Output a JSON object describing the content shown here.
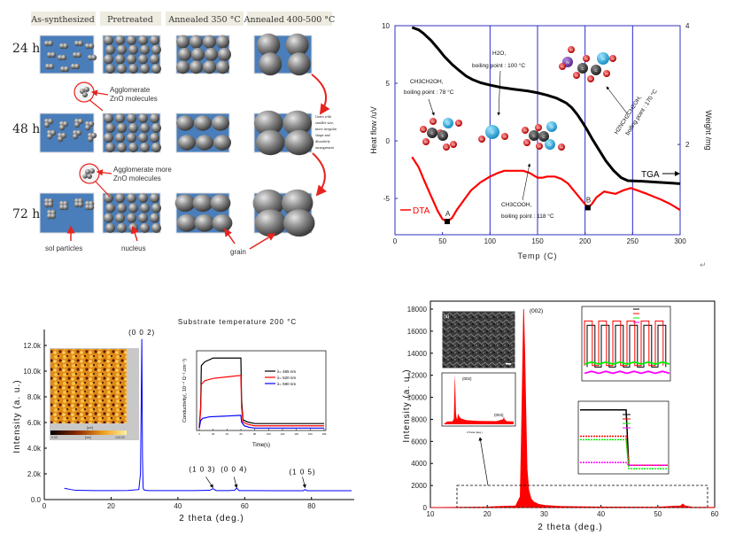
{
  "diagram": {
    "columns": [
      "As-synthesized",
      "Pretreated",
      "Annealed 350 °C",
      "Annealed 400-500 °C"
    ],
    "rows": [
      "24 h",
      "48 h",
      "72 h"
    ],
    "callouts": [
      {
        "line1": "Agglomerate",
        "line2": "ZnO molecules"
      },
      {
        "line1": "Agglomerate more",
        "line2": "ZnO molecules"
      }
    ],
    "labels": {
      "sol": "sol particles",
      "nucleus": "nucleus",
      "grain": "grain"
    },
    "side_note": [
      "Grain with",
      "smaller size,",
      "more irregular",
      "shape and",
      "disorderly",
      "arrangement"
    ],
    "colors": {
      "substrate": "#4a7ebb",
      "arrow": "#e8231e",
      "header_bg": "#eeebe0"
    }
  },
  "chart_data": [
    {
      "type": "line",
      "xlabel": "Temp (C)",
      "ylabel": "Heat flow /uV",
      "y2label": "Weight /mg",
      "xlim": [
        0,
        300
      ],
      "ylim": [
        -8.15,
        10
      ],
      "y2lim": [
        0.48,
        4
      ],
      "xticks": [
        "0",
        "50",
        "100",
        "150",
        "200",
        "250",
        "300"
      ],
      "yticks": [
        "-5",
        "0",
        "5",
        "10"
      ],
      "y2ticks": [
        "2",
        "4"
      ],
      "vlines": [
        100,
        150,
        200,
        250
      ],
      "series": [
        {
          "name": "DTA",
          "axis": "left",
          "color": "#ff0000",
          "x": [
            18,
            25,
            30,
            38,
            45,
            50,
            55,
            60,
            65,
            72,
            80,
            90,
            100,
            108,
            115,
            125,
            135,
            142,
            150,
            155,
            160,
            168,
            175,
            182,
            190,
            197,
            203,
            207,
            212,
            220,
            226,
            232,
            240,
            248,
            255,
            265,
            280,
            290,
            300
          ],
          "y": [
            -1.4,
            -2.3,
            -3.3,
            -4.8,
            -6.1,
            -6.8,
            -7.0,
            -6.7,
            -6.0,
            -5.2,
            -4.3,
            -3.6,
            -3.1,
            -2.8,
            -2.6,
            -2.6,
            -2.6,
            -2.8,
            -3.2,
            -3.2,
            -3.1,
            -3.1,
            -3.3,
            -3.7,
            -4.5,
            -5.2,
            -5.8,
            -5.5,
            -4.9,
            -4.4,
            -4.5,
            -4.6,
            -4.3,
            -4.1,
            -4.3,
            -4.6,
            -5.1,
            -5.5,
            -6.0
          ]
        },
        {
          "name": "TGA",
          "axis": "right",
          "color": "#000000",
          "x": [
            18,
            25,
            30,
            38,
            45,
            52,
            60,
            68,
            75,
            82,
            90,
            100,
            112,
            125,
            140,
            150,
            160,
            170,
            180,
            186,
            192,
            197,
            202,
            208,
            215,
            222,
            230,
            238,
            245,
            260,
            280,
            300
          ],
          "y": [
            3.97,
            3.93,
            3.87,
            3.75,
            3.62,
            3.48,
            3.35,
            3.24,
            3.15,
            3.09,
            3.04,
            3.0,
            2.96,
            2.93,
            2.9,
            2.87,
            2.83,
            2.78,
            2.7,
            2.62,
            2.5,
            2.38,
            2.25,
            2.08,
            1.9,
            1.72,
            1.56,
            1.44,
            1.39,
            1.38,
            1.36,
            1.34
          ]
        }
      ],
      "points": [
        {
          "label": "A",
          "x": 55,
          "y": -7.0
        },
        {
          "label": "B",
          "x": 203,
          "y": -5.8
        }
      ],
      "legend": {
        "dta": "DTA",
        "tga": "TGA"
      },
      "annotations": [
        {
          "formula": "CH3CH2OH,",
          "text": "boiling point : 78 °C"
        },
        {
          "formula": "H2O,",
          "text": "boiling point : 100 °C"
        },
        {
          "formula": "CH3COOH,",
          "text": "boiling point : 118 °C"
        },
        {
          "formula": "H2NCH2CH2OH,",
          "text": "boiling point : 170 °C"
        }
      ],
      "atom_labels": {
        "carbon": "C",
        "oxygen": "O",
        "hydrogen": "H",
        "nitrogen": "N"
      }
    },
    {
      "type": "line",
      "title": "Substrate temperature 200 °C",
      "xlabel": "2 theta (deg.)",
      "ylabel": "Intensity (a. u.)",
      "xlim": [
        0,
        92
      ],
      "ylim": [
        0,
        13200
      ],
      "xticks": [
        "0",
        "20",
        "40",
        "60",
        "80"
      ],
      "yticks": [
        "0.0",
        "2.0k",
        "4.0k",
        "6.0k",
        "8.0k",
        "10.0k",
        "12.0k"
      ],
      "series": [
        {
          "color": "#0000ff",
          "x": [
            6,
            8,
            9.5,
            15,
            20,
            25,
            28.3,
            28.8,
            29.0,
            29.2,
            29.4,
            29.6,
            29.8,
            30.2,
            31,
            35,
            40,
            45,
            49.5,
            50.5,
            51.5,
            55,
            57,
            57.6,
            58.3,
            62,
            70,
            77.5,
            78.1,
            78.7,
            85,
            92
          ],
          "y": [
            880,
            780,
            720,
            700,
            700,
            710,
            780,
            2000,
            6900,
            12500,
            3300,
            900,
            760,
            730,
            700,
            700,
            700,
            700,
            720,
            850,
            700,
            700,
            720,
            900,
            700,
            700,
            690,
            690,
            780,
            690,
            690,
            690
          ]
        }
      ],
      "peak_labels": [
        {
          "label": "(0 0 2)",
          "x": 29.2
        },
        {
          "label": "(1 0 3)",
          "x": 50.5
        },
        {
          "label": "(0 0 4)",
          "x": 57.6
        },
        {
          "label": "(1 0 5)",
          "x": 78.1
        }
      ],
      "afm_inset": {
        "scale_min": "0.00",
        "scale_unit": "[nm]",
        "scale_max": "143.00",
        "axis_unit": "[µm]"
      },
      "inset": {
        "type": "line",
        "xlabel": "Time(s)",
        "ylabel": "Conductivity(, 10⁻⁴ Ω⁻¹.cm⁻¹)",
        "xlim": [
          0,
          180
        ],
        "xticks": [
          "0",
          "20",
          "40",
          "60",
          "80",
          "100",
          "120",
          "140",
          "160",
          "180"
        ],
        "ylim": [
          0,
          1
        ],
        "series": [
          {
            "name": "λ= 465 nm",
            "color": "#000000",
            "x": [
              0,
              2,
              3,
              8,
              20,
              60,
              61,
              63,
              70,
              80,
              180
            ],
            "y": [
              0.02,
              0.3,
              0.85,
              0.9,
              0.95,
              0.95,
              0.4,
              0.13,
              0.1,
              0.08,
              0.08
            ]
          },
          {
            "name": "λ= 520 nm",
            "color": "#ff0000",
            "x": [
              0,
              2,
              3,
              8,
              20,
              60,
              61,
              63,
              70,
              80,
              180
            ],
            "y": [
              0.02,
              0.25,
              0.6,
              0.65,
              0.68,
              0.72,
              0.3,
              0.1,
              0.07,
              0.05,
              0.05
            ]
          },
          {
            "name": "λ= 590 nm",
            "color": "#0000ff",
            "x": [
              0,
              2,
              5,
              15,
              40,
              60,
              61,
              65,
              72,
              80,
              180
            ],
            "y": [
              0.02,
              0.12,
              0.15,
              0.17,
              0.18,
              0.19,
              0.1,
              0.05,
              0.03,
              0.02,
              0.02
            ]
          }
        ]
      }
    },
    {
      "type": "bar",
      "xlabel": "2 theta (deg.)",
      "ylabel": "Intensity (a. u.)",
      "xlim": [
        10,
        60
      ],
      "ylim": [
        0,
        18500
      ],
      "xticks": [
        "10",
        "20",
        "30",
        "40",
        "50",
        "60"
      ],
      "yticks": [
        "0",
        "2000",
        "4000",
        "6000",
        "8000",
        "10000",
        "12000",
        "14000",
        "16000",
        "18000"
      ],
      "series": [
        {
          "color": "#ff0000",
          "x": [
            10,
            20,
            22,
            25,
            25.8,
            26.0,
            26.2,
            26.4,
            26.6,
            26.8,
            27.0,
            27.3,
            27.7,
            28.2,
            29,
            30,
            33,
            40,
            50,
            54.0,
            54.4,
            54.8,
            56,
            60
          ],
          "y": [
            0,
            50,
            100,
            150,
            1000,
            6000,
            12000,
            18000,
            14000,
            8500,
            3500,
            1600,
            800,
            500,
            300,
            200,
            100,
            50,
            40,
            150,
            320,
            150,
            40,
            20
          ]
        }
      ],
      "peak_labels": [
        {
          "label": "(002)",
          "x": 26.4
        }
      ],
      "insets": {
        "sem_label": "(a)",
        "xrd": {
          "peak1": "(002)",
          "peak2": "(004)",
          "xlabel": "2 theta (deg.)"
        },
        "cycles": {
          "series_colors": [
            "#000000",
            "#ff0000",
            "#00ee00",
            "#ff00ff"
          ]
        },
        "step": {
          "series_colors": [
            "#000000",
            "#ff0000",
            "#00ee00",
            "#ff00ff"
          ]
        }
      }
    }
  ],
  "page_mark": "↵"
}
